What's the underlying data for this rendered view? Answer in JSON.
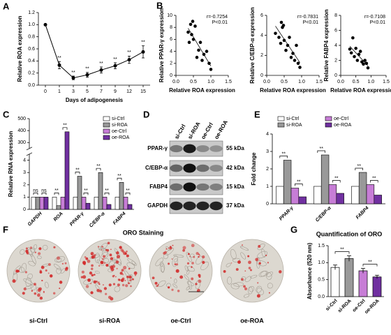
{
  "chart_data": [
    {
      "type": "line",
      "panel": "A",
      "ylabel": "Relative ROA expression",
      "xlabel": "Days of adipogenesis",
      "categories": [
        0,
        1,
        3,
        5,
        7,
        9,
        12,
        15
      ],
      "values": [
        1.0,
        0.33,
        0.12,
        0.17,
        0.25,
        0.32,
        0.42,
        0.55
      ],
      "errors": [
        0,
        0.06,
        0.03,
        0.04,
        0.05,
        0.05,
        0.06,
        0.1
      ],
      "significance": [
        null,
        "**",
        "**",
        "**",
        "**",
        "**",
        "**",
        "**"
      ],
      "color": "#000000",
      "ylim": [
        0,
        1.2
      ],
      "yticks": [
        {
          "value": 0,
          "label": "0.0"
        },
        0.2,
        0.4,
        0.6,
        0.8,
        {
          "value": 1,
          "label": "1.0"
        },
        1.2
      ]
    },
    {
      "type": "scatter",
      "panel": "B",
      "ylabel": "Relative PPAR-γ expression",
      "xlabel": "Relative ROA expression",
      "annotations": [
        "r=-0.7254",
        "P<0.01"
      ],
      "x": [
        0.35,
        0.38,
        0.42,
        0.45,
        0.48,
        0.5,
        0.55,
        0.6,
        0.65,
        0.7,
        0.75,
        0.8,
        0.88,
        0.95,
        1.0
      ],
      "y": [
        7.2,
        5.5,
        8.5,
        6.8,
        9.0,
        6.0,
        8.2,
        3.0,
        4.2,
        5.5,
        2.5,
        3.5,
        4.0,
        2.0,
        1.0
      ],
      "color": "#000000",
      "xlim": [
        0,
        1.5
      ],
      "xticks": [
        {
          "value": 0,
          "label": "0.0"
        },
        0.5,
        {
          "value": 1,
          "label": "1.0"
        },
        1.5
      ],
      "ylim": [
        0,
        10
      ],
      "yticks": [
        0,
        2,
        4,
        6,
        8,
        10
      ]
    },
    {
      "type": "scatter",
      "ylabel": "Relative C/EBP-α expression",
      "xlabel": "Relative ROA expression",
      "annotations": [
        "r=-0.7831",
        "P<0.01"
      ],
      "x": [
        0.25,
        0.35,
        0.4,
        0.42,
        0.45,
        0.48,
        0.5,
        0.55,
        0.6,
        0.65,
        0.7,
        0.75,
        0.8,
        0.85,
        0.9,
        0.95
      ],
      "y": [
        4.2,
        3.8,
        3.2,
        5.3,
        4.8,
        5.0,
        3.5,
        2.5,
        3.0,
        3.8,
        1.8,
        2.2,
        1.5,
        3.0,
        1.2,
        0.8
      ],
      "color": "#000000",
      "xlim": [
        0,
        1.5
      ],
      "xticks": [
        {
          "value": 0,
          "label": "0.0"
        },
        0.5,
        {
          "value": 1,
          "label": "1.0"
        },
        1.5
      ],
      "ylim": [
        0,
        6
      ],
      "yticks": [
        0,
        2,
        4,
        6
      ]
    },
    {
      "type": "scatter",
      "ylabel": "Relative FABP4 expression",
      "xlabel": "Relative ROA expression",
      "annotations": [
        "r=-0.7108",
        "P<0.01"
      ],
      "x": [
        0.3,
        0.35,
        0.4,
        0.45,
        0.5,
        0.55,
        0.6,
        0.65,
        0.7,
        0.75,
        0.8,
        0.85,
        0.9
      ],
      "y": [
        3.5,
        3.0,
        5.0,
        2.5,
        3.6,
        2.0,
        2.8,
        3.2,
        1.8,
        1.5,
        2.0,
        1.6,
        1.0
      ],
      "color": "#000000",
      "xlim": [
        0,
        1.5
      ],
      "xticks": [
        {
          "value": 0,
          "label": "0.0"
        },
        0.5,
        {
          "value": 1,
          "label": "1.0"
        },
        1.5
      ],
      "ylim": [
        0,
        8
      ],
      "yticks": [
        0,
        2,
        4,
        6,
        8
      ]
    },
    {
      "type": "bar",
      "panel": "C",
      "ylabel": "Relative RNA expression",
      "legend": "upper right",
      "categories": [
        "GAPDH",
        "ROA",
        "PPAR-γ",
        "C/EBP-α",
        "FABP4"
      ],
      "series": [
        {
          "name": "si-Ctrl",
          "color": "#ffffff",
          "values": [
            1,
            1,
            1,
            1,
            1
          ]
        },
        {
          "name": "si-ROA",
          "color": "#999999",
          "values": [
            1,
            0.3,
            2.7,
            3.0,
            2.2
          ]
        },
        {
          "name": "oe-Ctrl",
          "color": "#c77dd6",
          "values": [
            1,
            1,
            1,
            1,
            1
          ]
        },
        {
          "name": "oe-ROA",
          "color": "#7030a0",
          "values": [
            1,
            390,
            0.5,
            0.4,
            0.4
          ]
        }
      ],
      "significance": [
        [
          "ns",
          "ns"
        ],
        [
          "**",
          "**"
        ],
        [
          "**",
          "**"
        ],
        [
          "**",
          "**"
        ],
        [
          "**",
          "**"
        ]
      ],
      "ylim_segments": [
        [
          0,
          4.5
        ],
        [
          250,
          500
        ]
      ],
      "yticks": [
        0,
        1,
        2,
        3,
        4,
        300,
        400,
        500
      ]
    },
    {
      "type": "bar",
      "panel": "E",
      "ylabel": "Fold change",
      "legend": "top",
      "categories": [
        "PPAR-γ",
        "C/EBP-α",
        "FABP4"
      ],
      "series": [
        {
          "name": "si-Ctrl",
          "color": "#ffffff",
          "values": [
            1,
            1,
            1
          ]
        },
        {
          "name": "si-ROA",
          "color": "#999999",
          "values": [
            2.5,
            2.8,
            1.8
          ]
        },
        {
          "name": "oe-Ctrl",
          "color": "#c77dd6",
          "values": [
            0.9,
            1.1,
            1.1
          ]
        },
        {
          "name": "oe-ROA",
          "color": "#7030a0",
          "values": [
            0.4,
            0.6,
            0.5
          ]
        }
      ],
      "significance": [
        [
          "**",
          "**"
        ],
        [
          "**",
          "**"
        ],
        [
          "**",
          "**"
        ]
      ],
      "ylim": [
        0,
        4
      ],
      "yticks": [
        0,
        1,
        2,
        3,
        4
      ]
    },
    {
      "type": "bar",
      "panel": "G",
      "title": "Quantification of ORO",
      "ylabel": "Absorbance (520 nm)",
      "categories": [
        "si-Ctrl",
        "si-ROA",
        "oe-Ctrl",
        "oe-ROA"
      ],
      "values": [
        0.86,
        1.12,
        0.76,
        0.58
      ],
      "errors": [
        0.07,
        0.08,
        0.07,
        0.05
      ],
      "colors": [
        "#ffffff",
        "#999999",
        "#c77dd6",
        "#7030a0"
      ],
      "significance": [
        "**",
        "**"
      ],
      "ylim": [
        0,
        1.5
      ],
      "yticks": [
        {
          "value": 0,
          "label": "0.0"
        },
        0.5,
        {
          "value": 1,
          "label": "1.0"
        },
        1.5
      ]
    }
  ],
  "blot": {
    "panel": "D",
    "lanes": [
      "si-Ctrl",
      "si-ROA",
      "oe-Ctrl",
      "oe-ROA"
    ],
    "proteins": [
      "PPAR-γ",
      "C/EBP-α",
      "FABP4",
      "GAPDH"
    ],
    "sizes": [
      "55 kDa",
      "42 kDa",
      "15 kDa",
      "37 kDa"
    ]
  },
  "staining": {
    "panel": "F",
    "title": "ORO Staining",
    "samples": [
      "si-Ctrl",
      "si-ROA",
      "oe-Ctrl",
      "oe-ROA"
    ]
  }
}
